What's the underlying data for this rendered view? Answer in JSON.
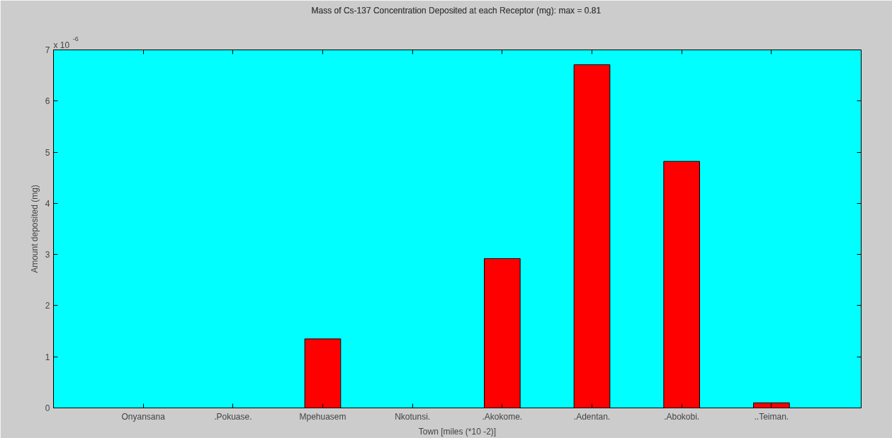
{
  "chart_data": {
    "type": "bar",
    "title": "Mass of Cs-137 Concentration Deposited at each Receptor (mg): max =  0.81",
    "xlabel": "Town [miles (*10 -2)]",
    "ylabel": "Amount deposited (mg)",
    "categories": [
      "Onyansana",
      ".Pokuase.",
      "Mpehuasem",
      "Nkotunsi.",
      ".Akokome.",
      ".Adentan.",
      ".Abokobi.",
      "..Teiman."
    ],
    "values": [
      0,
      0,
      1.35,
      0,
      2.92,
      6.71,
      4.82,
      0.1
    ],
    "color": "#ff0000",
    "ylim": [
      0,
      7
    ],
    "yticks": [
      0,
      1,
      2,
      3,
      4,
      5,
      6,
      7
    ],
    "grid": false,
    "annotations": [
      "x 10$^{-6}$"
    ]
  }
}
